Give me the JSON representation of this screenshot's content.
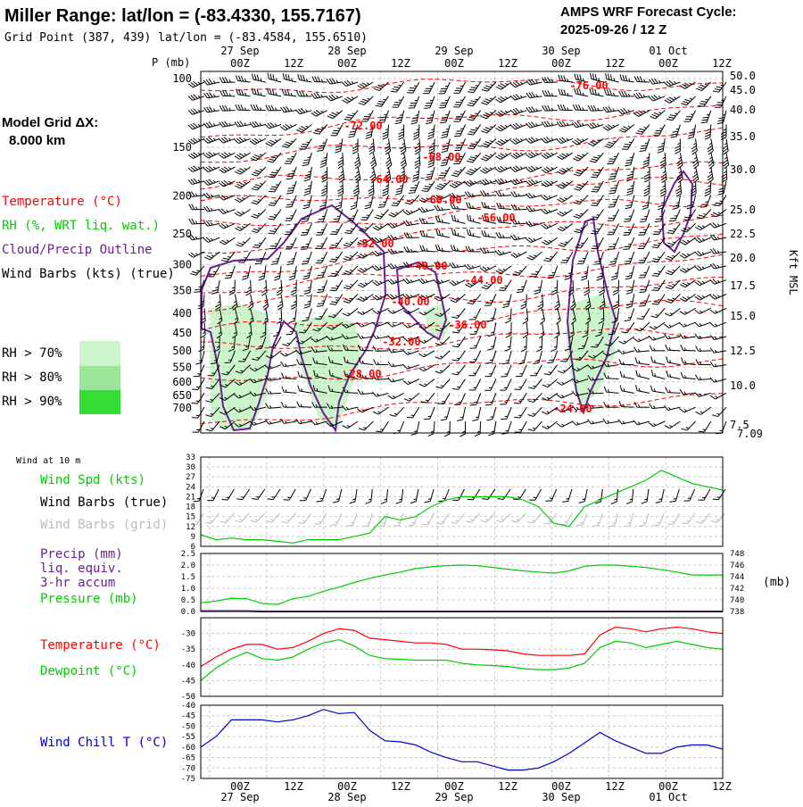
{
  "header": {
    "title": "Miller Range:  lat/lon = (-83.4330, 155.7167)",
    "subtitle": "Grid Point (387, 439) lat/lon = (-83.4584, 155.6510)",
    "cycle_line1": "AMPS WRF Forecast Cycle:",
    "cycle_line2": "2025-09-26 / 12  Z"
  },
  "left_legend": {
    "grid_line1": "Model Grid ΔX:",
    "grid_line2": "8.000 km",
    "temperature": "Temperature (°C)",
    "rh": "RH (%, WRT liq. wat.)",
    "cloud": "Cloud/Precip Outline",
    "wind_barbs": "Wind Barbs (kts) (true)",
    "rh70": "RH > 70%",
    "rh80": "RH > 80%",
    "rh90": "RH > 90%"
  },
  "colors": {
    "temperature": "#ff0000",
    "rh": "#00cc00",
    "cloud": "#6a2090",
    "barbs": "#000000",
    "barbs_grid": "#bbbbbb",
    "windchill": "#0000cc",
    "rh70": "#ccf5cc",
    "rh80": "#99e699",
    "rh90": "#33dd33"
  },
  "time_axis": {
    "hour_labels": [
      "00Z",
      "12Z",
      "00Z",
      "12Z",
      "00Z",
      "12Z",
      "00Z",
      "12Z",
      "00Z",
      "12Z"
    ],
    "date_labels": [
      "27 Sep",
      "28 Sep",
      "29 Sep",
      "30 Sep",
      "01 Oct"
    ]
  },
  "chart_data": [
    {
      "type": "line",
      "name": "upper-air cross section",
      "y_axis_label": "P (mb)",
      "right_axis_label": "Kft MSL",
      "pressure_ticks": [
        100,
        150,
        200,
        250,
        300,
        350,
        400,
        450,
        500,
        550,
        600,
        650,
        700
      ],
      "height_ticks": [
        "50.0",
        "45.0",
        "40.0",
        "35.0",
        "30.0",
        "25.0",
        "22.5",
        "20.0",
        "17.5",
        "15.0",
        "12.5",
        "10.0",
        "7.5"
      ],
      "surface_height": "7.09",
      "isotherm_labels": [
        "-76.00",
        "-72.00",
        "-68.00",
        "-64.00",
        "-60.00",
        "-56.00",
        "-52.00",
        "-48.00",
        "-44.00",
        "-40.00",
        "-36.00",
        "-32.00",
        "-28.00",
        "-24.00"
      ],
      "rh_above_70_present": true,
      "cloud_outline_present": true
    },
    {
      "type": "line",
      "panel_title": "Wind at 10 m",
      "legend": [
        "Wind Spd (kts)",
        "Wind Barbs (true)",
        "Wind Barbs (grid)"
      ],
      "y_ticks": [
        "33",
        "30",
        "27",
        "24",
        "21",
        "18",
        "15",
        "12",
        "9",
        "6"
      ],
      "ylim": [
        6,
        33
      ],
      "series": [
        {
          "name": "Wind Spd (kts)",
          "values": [
            9.5,
            8,
            8.5,
            8,
            8,
            7.5,
            7,
            8,
            8,
            8,
            9,
            10,
            15,
            14,
            15,
            18,
            20,
            21,
            21,
            21,
            21,
            20,
            18,
            13,
            12,
            18,
            20,
            22,
            24,
            26,
            29,
            27,
            25,
            24,
            23
          ]
        }
      ]
    },
    {
      "type": "line",
      "legend": [
        "Precip (mm)",
        "liq. equiv.",
        "3-hr accum",
        "Pressure (mb)"
      ],
      "left_ticks": [
        "2.5",
        "2.0",
        "1.5",
        "1.0",
        "0.5",
        "0.0"
      ],
      "right_ticks": [
        "748",
        "746",
        "744",
        "742",
        "740",
        "738"
      ],
      "right_unit": "(mb)",
      "ylim_precip": [
        0,
        2.5
      ],
      "ylim_pressure": [
        738,
        748
      ],
      "series": [
        {
          "name": "Pressure (mb)",
          "values": [
            739.5,
            739.8,
            740.3,
            740.2,
            739.4,
            739.2,
            740.2,
            740.6,
            741.5,
            742.2,
            743.0,
            743.7,
            744.3,
            744.8,
            745.4,
            745.7,
            745.9,
            746.0,
            745.9,
            745.6,
            745.3,
            745.0,
            744.8,
            744.6,
            745.0,
            745.8,
            746.0,
            746.0,
            745.8,
            745.6,
            745.2,
            744.8,
            744.3,
            744.3,
            744.3
          ]
        },
        {
          "name": "Precip (mm)",
          "values": [
            0.02,
            0.02,
            0.02,
            0.02,
            0,
            0,
            0,
            0,
            0,
            0,
            0,
            0,
            0,
            0,
            0,
            0,
            0,
            0,
            0,
            0,
            0,
            0,
            0,
            0,
            0,
            0,
            0,
            0,
            0,
            0,
            0,
            0,
            0,
            0,
            0
          ]
        }
      ]
    },
    {
      "type": "line",
      "legend": [
        "Temperature (°C)",
        "Dewpoint (°C)"
      ],
      "y_ticks": [
        "-30",
        "-35",
        "-40",
        "-45",
        "-50"
      ],
      "ylim": [
        -50,
        -25
      ],
      "series": [
        {
          "name": "Temperature (°C)",
          "values": [
            -40.5,
            -37.5,
            -35,
            -33.5,
            -33.5,
            -35,
            -34.5,
            -32.5,
            -30,
            -28.5,
            -29,
            -31.5,
            -32,
            -32.5,
            -33,
            -33,
            -33.5,
            -35,
            -35,
            -35.2,
            -35.5,
            -36.5,
            -37,
            -37,
            -37,
            -36.5,
            -30.5,
            -28,
            -28.5,
            -29.5,
            -28.5,
            -28,
            -28.5,
            -29.5,
            -30
          ]
        },
        {
          "name": "Dewpoint (°C)",
          "values": [
            -45,
            -41,
            -38,
            -36,
            -38,
            -38.5,
            -37.5,
            -35,
            -33,
            -32,
            -34,
            -37,
            -38,
            -38.2,
            -38.5,
            -38.5,
            -38.5,
            -39.5,
            -40,
            -40.2,
            -40.5,
            -41.2,
            -41.5,
            -41.5,
            -41,
            -39.5,
            -34.5,
            -32.5,
            -33,
            -34.5,
            -33.5,
            -32.5,
            -33.5,
            -34.5,
            -35
          ]
        }
      ]
    },
    {
      "type": "line",
      "legend": [
        "Wind Chill T (°C)"
      ],
      "y_ticks": [
        "-40",
        "-45",
        "-50",
        "-55",
        "-60",
        "-65",
        "-70",
        "-75"
      ],
      "ylim": [
        -75,
        -40
      ],
      "series": [
        {
          "name": "Wind Chill T (°C)",
          "values": [
            -60,
            -55,
            -47,
            -47,
            -47,
            -48,
            -47,
            -45,
            -42,
            -44,
            -43.5,
            -52,
            -57,
            -57.5,
            -59,
            -62.5,
            -65,
            -67,
            -67,
            -69,
            -71,
            -71,
            -70,
            -67,
            -63,
            -58,
            -53,
            -57,
            -60,
            -63,
            -63,
            -60,
            -59,
            -59,
            -61
          ]
        }
      ]
    }
  ]
}
